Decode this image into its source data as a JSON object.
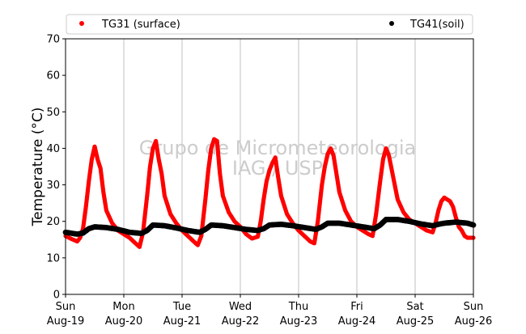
{
  "chart_data": {
    "type": "scatter",
    "title": "",
    "xlabel": "",
    "ylabel": "Temperature (°C)",
    "ylim": [
      0,
      70
    ],
    "yticks": [
      0,
      10,
      20,
      30,
      40,
      50,
      60,
      70
    ],
    "xlim": [
      0,
      7
    ],
    "xticks": [
      {
        "x": 0,
        "day": "Sun",
        "date": "Aug-19"
      },
      {
        "x": 1,
        "day": "Mon",
        "date": "Aug-20"
      },
      {
        "x": 2,
        "day": "Tue",
        "date": "Aug-21"
      },
      {
        "x": 3,
        "day": "Wed",
        "date": "Aug-22"
      },
      {
        "x": 4,
        "day": "Thu",
        "date": "Aug-23"
      },
      {
        "x": 5,
        "day": "Fri",
        "date": "Aug-24"
      },
      {
        "x": 6,
        "day": "Sat",
        "date": "Aug-25"
      },
      {
        "x": 7,
        "day": "Sun",
        "date": "Aug-26"
      }
    ],
    "grid": "vertical",
    "legend_position": "top",
    "watermark": [
      "Grupo de Micrometeorologia",
      "IAG / USP"
    ],
    "series": [
      {
        "name": "TG31 (surface)",
        "color": "#ff0000",
        "points": [
          [
            0.0,
            16.0
          ],
          [
            0.1,
            15.2
          ],
          [
            0.2,
            14.5
          ],
          [
            0.25,
            15.5
          ],
          [
            0.3,
            18.0
          ],
          [
            0.35,
            24.0
          ],
          [
            0.4,
            31.0
          ],
          [
            0.45,
            37.0
          ],
          [
            0.5,
            40.5
          ],
          [
            0.55,
            37.0
          ],
          [
            0.6,
            34.5
          ],
          [
            0.65,
            28.0
          ],
          [
            0.7,
            23.0
          ],
          [
            0.8,
            19.5
          ],
          [
            0.9,
            17.5
          ],
          [
            1.0,
            16.5
          ],
          [
            1.1,
            15.5
          ],
          [
            1.2,
            14.0
          ],
          [
            1.27,
            13.0
          ],
          [
            1.33,
            17.0
          ],
          [
            1.4,
            27.0
          ],
          [
            1.45,
            35.0
          ],
          [
            1.5,
            40.0
          ],
          [
            1.55,
            42.0
          ],
          [
            1.6,
            37.0
          ],
          [
            1.65,
            33.0
          ],
          [
            1.7,
            27.0
          ],
          [
            1.8,
            22.0
          ],
          [
            1.9,
            19.5
          ],
          [
            2.0,
            17.5
          ],
          [
            2.1,
            16.0
          ],
          [
            2.2,
            14.5
          ],
          [
            2.27,
            13.5
          ],
          [
            2.33,
            16.0
          ],
          [
            2.4,
            26.0
          ],
          [
            2.45,
            34.0
          ],
          [
            2.5,
            40.0
          ],
          [
            2.55,
            42.5
          ],
          [
            2.6,
            42.0
          ],
          [
            2.65,
            33.0
          ],
          [
            2.7,
            27.0
          ],
          [
            2.8,
            22.5
          ],
          [
            2.9,
            20.0
          ],
          [
            3.0,
            18.5
          ],
          [
            3.1,
            16.5
          ],
          [
            3.2,
            15.3
          ],
          [
            3.3,
            15.8
          ],
          [
            3.35,
            20.0
          ],
          [
            3.4,
            26.0
          ],
          [
            3.45,
            31.0
          ],
          [
            3.5,
            34.0
          ],
          [
            3.55,
            36.0
          ],
          [
            3.6,
            37.5
          ],
          [
            3.65,
            32.0
          ],
          [
            3.7,
            27.0
          ],
          [
            3.8,
            22.0
          ],
          [
            3.9,
            19.5
          ],
          [
            4.0,
            17.5
          ],
          [
            4.1,
            16.0
          ],
          [
            4.2,
            14.5
          ],
          [
            4.27,
            14.0
          ],
          [
            4.33,
            20.0
          ],
          [
            4.4,
            30.0
          ],
          [
            4.45,
            35.0
          ],
          [
            4.5,
            38.5
          ],
          [
            4.55,
            40.0
          ],
          [
            4.6,
            38.0
          ],
          [
            4.65,
            33.0
          ],
          [
            4.7,
            28.0
          ],
          [
            4.8,
            23.0
          ],
          [
            4.9,
            20.0
          ],
          [
            5.0,
            18.5
          ],
          [
            5.1,
            17.5
          ],
          [
            5.2,
            16.5
          ],
          [
            5.27,
            16.0
          ],
          [
            5.33,
            22.0
          ],
          [
            5.4,
            31.0
          ],
          [
            5.45,
            37.0
          ],
          [
            5.5,
            40.0
          ],
          [
            5.55,
            38.0
          ],
          [
            5.6,
            34.0
          ],
          [
            5.65,
            30.0
          ],
          [
            5.7,
            26.0
          ],
          [
            5.8,
            22.5
          ],
          [
            5.9,
            20.5
          ],
          [
            6.0,
            19.5
          ],
          [
            6.1,
            18.5
          ],
          [
            6.2,
            17.5
          ],
          [
            6.3,
            17.0
          ],
          [
            6.35,
            19.5
          ],
          [
            6.4,
            23.0
          ],
          [
            6.45,
            25.5
          ],
          [
            6.5,
            26.5
          ],
          [
            6.55,
            26.0
          ],
          [
            6.6,
            25.5
          ],
          [
            6.65,
            24.0
          ],
          [
            6.7,
            21.0
          ],
          [
            6.75,
            18.5
          ],
          [
            6.8,
            17.5
          ],
          [
            6.85,
            16.0
          ],
          [
            6.9,
            15.5
          ],
          [
            7.0,
            15.5
          ]
        ]
      },
      {
        "name": "TG41(soil)",
        "color": "#000000",
        "points": [
          [
            0.0,
            17.0
          ],
          [
            0.2,
            16.5
          ],
          [
            0.3,
            16.8
          ],
          [
            0.4,
            18.0
          ],
          [
            0.5,
            18.5
          ],
          [
            0.7,
            18.3
          ],
          [
            0.9,
            17.8
          ],
          [
            1.1,
            17.0
          ],
          [
            1.3,
            16.7
          ],
          [
            1.4,
            17.5
          ],
          [
            1.5,
            19.0
          ],
          [
            1.7,
            18.8
          ],
          [
            1.9,
            18.2
          ],
          [
            2.1,
            17.5
          ],
          [
            2.3,
            17.0
          ],
          [
            2.4,
            17.8
          ],
          [
            2.5,
            19.0
          ],
          [
            2.7,
            18.8
          ],
          [
            2.9,
            18.3
          ],
          [
            3.1,
            17.8
          ],
          [
            3.3,
            17.5
          ],
          [
            3.4,
            18.0
          ],
          [
            3.5,
            19.0
          ],
          [
            3.7,
            19.2
          ],
          [
            3.9,
            18.8
          ],
          [
            4.1,
            18.3
          ],
          [
            4.3,
            17.8
          ],
          [
            4.4,
            18.5
          ],
          [
            4.5,
            19.5
          ],
          [
            4.7,
            19.5
          ],
          [
            4.9,
            19.0
          ],
          [
            5.1,
            18.5
          ],
          [
            5.3,
            18.0
          ],
          [
            5.4,
            19.0
          ],
          [
            5.5,
            20.5
          ],
          [
            5.7,
            20.5
          ],
          [
            5.9,
            20.0
          ],
          [
            6.1,
            19.3
          ],
          [
            6.3,
            18.8
          ],
          [
            6.4,
            19.2
          ],
          [
            6.5,
            19.5
          ],
          [
            6.7,
            19.8
          ],
          [
            6.9,
            19.5
          ],
          [
            7.0,
            19.0
          ]
        ]
      }
    ]
  }
}
